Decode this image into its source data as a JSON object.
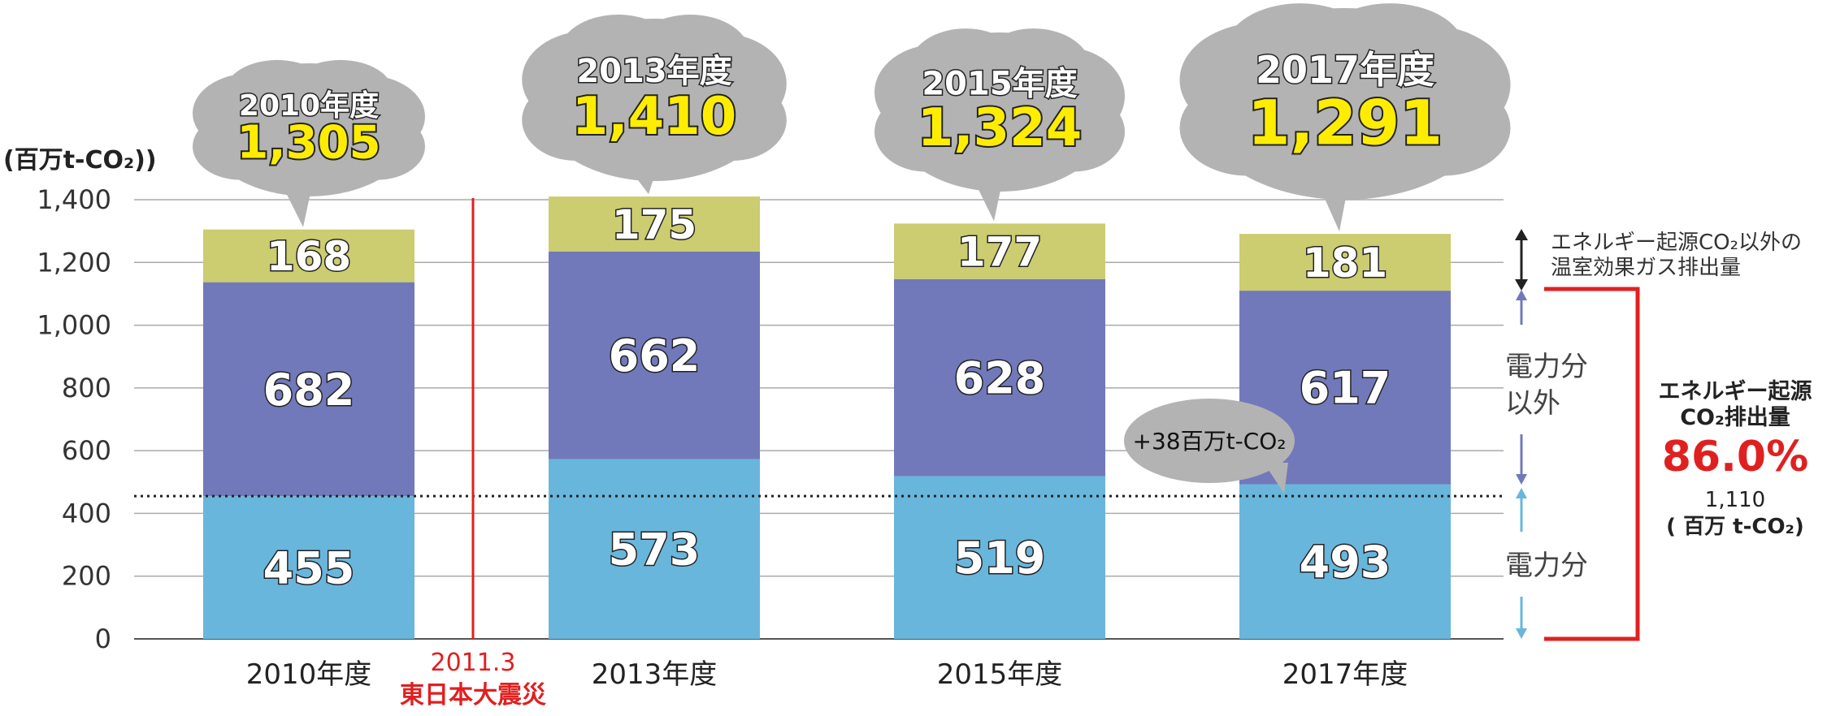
{
  "chart_data": {
    "type": "bar",
    "stacked": true,
    "unit_label": "(百万t-CO₂))",
    "categories": [
      "2010年度",
      "2013年度",
      "2015年度",
      "2017年度"
    ],
    "series": [
      {
        "values": [
          455,
          573,
          519,
          493
        ],
        "color": "#69b6dc"
      },
      {
        "values": [
          682,
          662,
          628,
          617
        ],
        "color": "#7279ba"
      },
      {
        "values": [
          168,
          175,
          177,
          181
        ],
        "color": "#cccc70"
      }
    ],
    "totals": [
      1305,
      1410,
      1324,
      1291
    ],
    "total_labels": [
      "1,305",
      "1,410",
      "1,324",
      "1,291"
    ],
    "bubble_years": [
      "2010年度",
      "2013年度",
      "2015年度",
      "2017年度"
    ],
    "ylim": [
      0,
      1400
    ],
    "yticks": [
      0,
      200,
      400,
      600,
      800,
      1000,
      1200,
      1400
    ],
    "ytick_labels": [
      "0",
      "200",
      "400",
      "600",
      "800",
      "1,000",
      "1,200",
      "1,400"
    ],
    "grid": true,
    "reference_line": {
      "value": 455,
      "style": "dotted"
    },
    "event": {
      "line1": "2011.3",
      "line2": "東日本大震災",
      "color": "#e02020"
    },
    "delta_callout": "+38百万t-CO₂",
    "right_legend": {
      "other_gases_line1": "エネルギー起源CO₂以外の",
      "other_gases_line2": "温室効果ガス排出量",
      "nonpower_line1": "電力分",
      "nonpower_line2": "以外",
      "power": "電力分",
      "energy_title_line1": "エネルギー起源",
      "energy_title_line2": "CO₂排出量",
      "energy_pct": "86.0%",
      "energy_value": "1,110",
      "energy_unit": "( 百万  t-CO₂)",
      "pct_color": "#e02020"
    },
    "colors": {
      "bubble": "#b3b3b3",
      "total_text": "#ffed00",
      "axis": "#333333"
    }
  }
}
